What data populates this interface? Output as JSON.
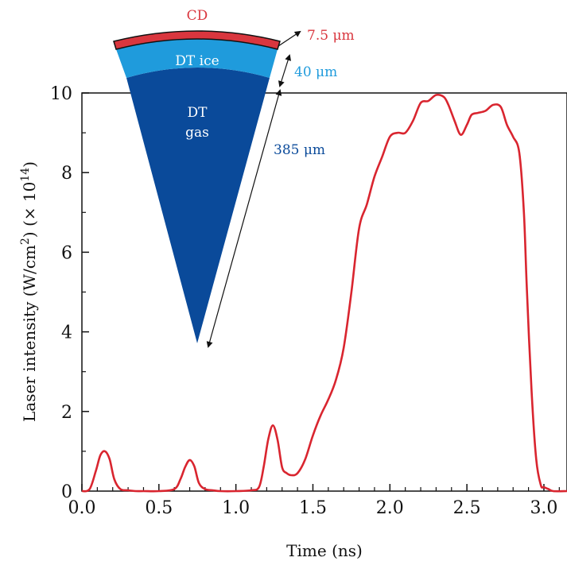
{
  "chart_data": {
    "type": "line",
    "xlabel": "Time (ns)",
    "ylabel_main": "Laser intensity (W/cm",
    "ylabel_sup1": "2",
    "ylabel_mid": ") (× 10",
    "ylabel_sup2": "14",
    "ylabel_end": ")",
    "xlim": [
      0.0,
      3.15
    ],
    "ylim": [
      0,
      10
    ],
    "x_ticks": [
      "0.0",
      "0.5",
      "1.0",
      "1.5",
      "2.0",
      "2.5",
      "3.0"
    ],
    "y_ticks": [
      "0",
      "2",
      "4",
      "6",
      "8",
      "10"
    ],
    "series": [
      {
        "color": "#d9252f",
        "x": [
          0.0,
          0.05,
          0.09,
          0.12,
          0.15,
          0.18,
          0.21,
          0.25,
          0.3,
          0.35,
          0.4,
          0.5,
          0.6,
          0.64,
          0.67,
          0.7,
          0.73,
          0.76,
          0.8,
          0.85,
          0.9,
          1.0,
          1.1,
          1.15,
          1.18,
          1.21,
          1.24,
          1.27,
          1.3,
          1.33,
          1.36,
          1.4,
          1.45,
          1.5,
          1.55,
          1.6,
          1.65,
          1.7,
          1.75,
          1.8,
          1.85,
          1.9,
          1.95,
          2.0,
          2.05,
          2.1,
          2.15,
          2.2,
          2.25,
          2.3,
          2.35,
          2.38,
          2.42,
          2.46,
          2.5,
          2.53,
          2.57,
          2.62,
          2.67,
          2.72,
          2.76,
          2.8,
          2.84,
          2.87,
          2.89,
          2.92,
          2.95,
          2.98,
          3.0,
          3.03,
          3.06,
          3.15
        ],
        "y": [
          0.0,
          0.05,
          0.5,
          0.9,
          1.0,
          0.8,
          0.3,
          0.05,
          0.02,
          0.0,
          0.0,
          0.0,
          0.05,
          0.3,
          0.6,
          0.78,
          0.62,
          0.2,
          0.05,
          0.02,
          0.0,
          0.0,
          0.02,
          0.1,
          0.6,
          1.3,
          1.65,
          1.3,
          0.6,
          0.45,
          0.4,
          0.45,
          0.8,
          1.4,
          1.9,
          2.3,
          2.8,
          3.6,
          5.0,
          6.6,
          7.2,
          7.9,
          8.4,
          8.9,
          9.0,
          9.0,
          9.3,
          9.75,
          9.8,
          9.95,
          9.9,
          9.7,
          9.3,
          8.95,
          9.2,
          9.45,
          9.5,
          9.55,
          9.7,
          9.65,
          9.2,
          8.9,
          8.5,
          7.0,
          5.0,
          2.5,
          0.8,
          0.15,
          0.1,
          0.05,
          0.0,
          0.0
        ]
      }
    ]
  },
  "inset": {
    "layer_cd": "CD",
    "layer_ice": "DT ice",
    "layer_gas_line1": "DT",
    "layer_gas_line2": "gas",
    "dim_cd": "7.5 μm",
    "dim_ice": "40 μm",
    "dim_gas": "385 μm",
    "colors": {
      "cd": "#d9363e",
      "ice": "#1f9bdc",
      "gas": "#0a4a9a"
    }
  }
}
